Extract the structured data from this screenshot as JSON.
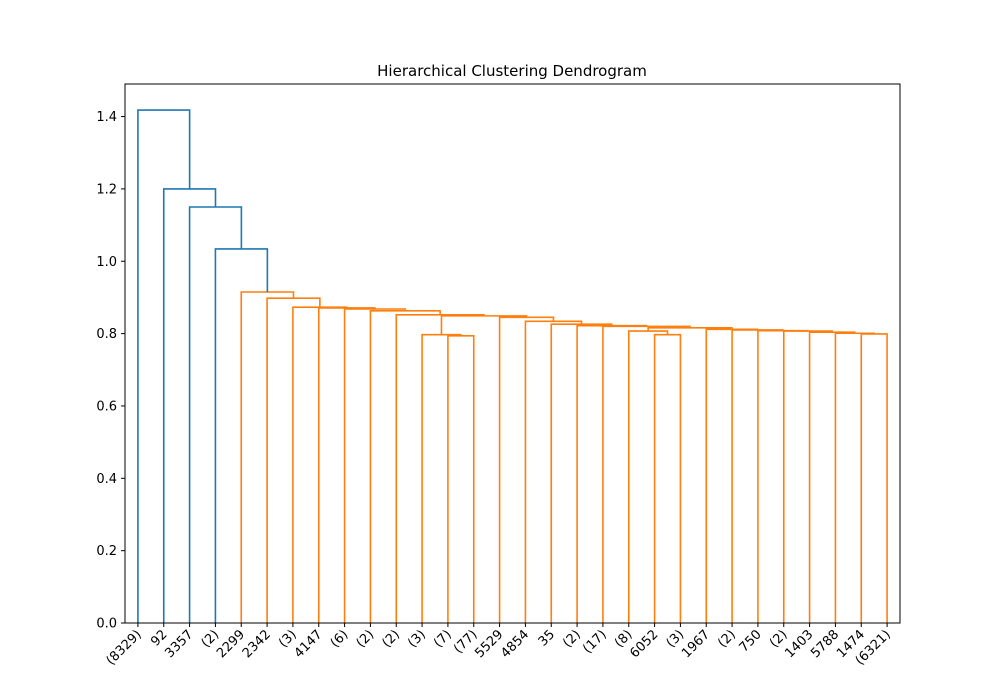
{
  "chart_data": {
    "type": "dendrogram",
    "title": "Hierarchical Clustering Dendrogram",
    "xlabel": "",
    "ylabel": "",
    "ylim": [
      0,
      1.49
    ],
    "y_ticks": [
      0.0,
      0.2,
      0.4,
      0.6,
      0.8,
      1.0,
      1.2,
      1.4
    ],
    "y_tick_labels": [
      "0.0",
      "0.2",
      "0.4",
      "0.6",
      "0.8",
      "1.0",
      "1.2",
      "1.4"
    ],
    "leaf_labels": [
      "(8329)",
      "92",
      "3357",
      "(2)",
      "2299",
      "2342",
      "(3)",
      "4147",
      "(6)",
      "(2)",
      "(2)",
      "(3)",
      "(7)",
      "(77)",
      "5529",
      "4854",
      "35",
      "(2)",
      "(17)",
      "(8)",
      "6052",
      "(3)",
      "1967",
      "(2)",
      "750",
      "(2)",
      "1403",
      "5788",
      "1474",
      "(6321)"
    ],
    "grid": false,
    "colors": {
      "above_threshold": "#1f77b4",
      "cluster": "#ff7f0e"
    },
    "links": [
      {
        "left": 28,
        "right": 29,
        "height": 0.799,
        "color": "cluster"
      },
      {
        "left": 27,
        "right": "L0",
        "height": 0.801,
        "color": "cluster"
      },
      {
        "left": 26,
        "right": "L1",
        "height": 0.804,
        "color": "cluster"
      },
      {
        "left": 25,
        "right": "L2",
        "height": 0.807,
        "color": "cluster"
      },
      {
        "left": 24,
        "right": "L3",
        "height": 0.808,
        "color": "cluster"
      },
      {
        "left": 23,
        "right": "L4",
        "height": 0.81,
        "color": "cluster"
      },
      {
        "left": 22,
        "right": "L5",
        "height": 0.812,
        "color": "cluster"
      },
      {
        "left": 20,
        "right": 21,
        "height": 0.797,
        "color": "cluster"
      },
      {
        "left": 19,
        "right": "L7",
        "height": 0.807,
        "color": "cluster"
      },
      {
        "left": "L8",
        "right": "L6",
        "height": 0.816,
        "color": "cluster"
      },
      {
        "left": 18,
        "right": "L9",
        "height": 0.82,
        "color": "cluster"
      },
      {
        "left": 17,
        "right": "L10",
        "height": 0.822,
        "color": "cluster"
      },
      {
        "left": 16,
        "right": "L11",
        "height": 0.826,
        "color": "cluster"
      },
      {
        "left": 15,
        "right": "L12",
        "height": 0.834,
        "color": "cluster"
      },
      {
        "left": 14,
        "right": "L13",
        "height": 0.845,
        "color": "cluster"
      },
      {
        "left": 12,
        "right": 13,
        "height": 0.794,
        "color": "cluster"
      },
      {
        "left": 11,
        "right": "L15",
        "height": 0.797,
        "color": "cluster"
      },
      {
        "left": "L16",
        "right": "L14",
        "height": 0.849,
        "color": "cluster"
      },
      {
        "left": 10,
        "right": "L17",
        "height": 0.852,
        "color": "cluster"
      },
      {
        "left": 9,
        "right": "L18",
        "height": 0.863,
        "color": "cluster"
      },
      {
        "left": 8,
        "right": "L19",
        "height": 0.868,
        "color": "cluster"
      },
      {
        "left": 7,
        "right": "L20",
        "height": 0.871,
        "color": "cluster"
      },
      {
        "left": 6,
        "right": "L21",
        "height": 0.873,
        "color": "cluster"
      },
      {
        "left": 5,
        "right": "L22",
        "height": 0.898,
        "color": "cluster"
      },
      {
        "left": 4,
        "right": "L23",
        "height": 0.915,
        "color": "cluster"
      },
      {
        "left": 3,
        "right": "L24",
        "height": 1.034,
        "color": "above_threshold"
      },
      {
        "left": 2,
        "right": "L25",
        "height": 1.15,
        "color": "above_threshold"
      },
      {
        "left": 1,
        "right": "L26",
        "height": 1.2,
        "color": "above_threshold"
      },
      {
        "left": 0,
        "right": "L27",
        "height": 1.418,
        "color": "above_threshold"
      }
    ]
  }
}
